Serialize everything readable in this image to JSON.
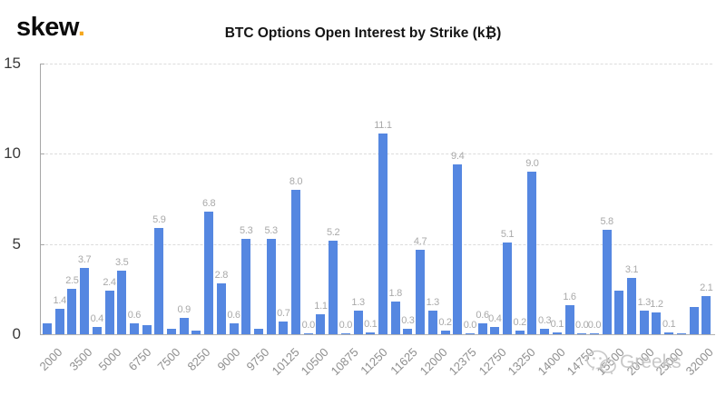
{
  "logo": {
    "text": "skew",
    "dot": "."
  },
  "header": {
    "title": "BTC Options Open Interest by Strike (k₿)"
  },
  "watermark": {
    "text": "Greeks",
    "icon": "wechat-icon"
  },
  "colors": {
    "bar": "#5587E1",
    "data_label": "#a9a9a9",
    "grid": "#dcdcdc",
    "axis": "#a6a6a6",
    "y_tick_text": "#3a3a3a",
    "x_tick_text": "#8f8f8f",
    "title_text": "#141414",
    "logo_dot": "#f5a81e",
    "watermark_text": "#c6c6c6"
  },
  "chart_data": {
    "type": "bar",
    "title": "BTC Options Open Interest by Strike (k₿)",
    "xlabel": "",
    "ylabel": "",
    "ylim": [
      0,
      15
    ],
    "yticks": [
      0,
      5,
      10,
      15
    ],
    "grid": "horizontal-dashed",
    "legend": "none",
    "x_tick_labels": [
      "2000",
      "3500",
      "5000",
      "6750",
      "7500",
      "8250",
      "9000",
      "9750",
      "10125",
      "10500",
      "10875",
      "11250",
      "11625",
      "12000",
      "12375",
      "12750",
      "13250",
      "14000",
      "14750",
      "15500",
      "20000",
      "25000",
      "32000"
    ],
    "bars": [
      {
        "value": 0.6,
        "label": ""
      },
      {
        "value": 1.4,
        "label": "1.4"
      },
      {
        "value": 2.5,
        "label": "2.5"
      },
      {
        "value": 3.7,
        "label": "3.7"
      },
      {
        "value": 0.4,
        "label": "0.4"
      },
      {
        "value": 2.4,
        "label": "2.4"
      },
      {
        "value": 3.5,
        "label": "3.5"
      },
      {
        "value": 0.6,
        "label": "0.6"
      },
      {
        "value": 0.5,
        "label": ""
      },
      {
        "value": 5.9,
        "label": "5.9"
      },
      {
        "value": 0.3,
        "label": ""
      },
      {
        "value": 0.9,
        "label": "0.9"
      },
      {
        "value": 0.2,
        "label": ""
      },
      {
        "value": 6.8,
        "label": "6.8"
      },
      {
        "value": 2.8,
        "label": "2.8"
      },
      {
        "value": 0.6,
        "label": "0.6"
      },
      {
        "value": 5.3,
        "label": "5.3"
      },
      {
        "value": 0.3,
        "label": ""
      },
      {
        "value": 5.3,
        "label": "5.3"
      },
      {
        "value": 0.7,
        "label": "0.7"
      },
      {
        "value": 8.0,
        "label": "8.0"
      },
      {
        "value": 0.0,
        "label": "0.0"
      },
      {
        "value": 1.1,
        "label": "1.1"
      },
      {
        "value": 5.2,
        "label": "5.2"
      },
      {
        "value": 0.0,
        "label": "0.0"
      },
      {
        "value": 1.3,
        "label": "1.3"
      },
      {
        "value": 0.1,
        "label": "0.1"
      },
      {
        "value": 11.1,
        "label": "11.1"
      },
      {
        "value": 1.8,
        "label": "1.8"
      },
      {
        "value": 0.3,
        "label": "0.3"
      },
      {
        "value": 4.7,
        "label": "4.7"
      },
      {
        "value": 1.3,
        "label": "1.3"
      },
      {
        "value": 0.2,
        "label": "0.2"
      },
      {
        "value": 9.4,
        "label": "9.4"
      },
      {
        "value": 0.0,
        "label": "0.0"
      },
      {
        "value": 0.6,
        "label": "0.6"
      },
      {
        "value": 0.4,
        "label": "0.4"
      },
      {
        "value": 5.1,
        "label": "5.1"
      },
      {
        "value": 0.2,
        "label": "0.2"
      },
      {
        "value": 9.0,
        "label": "9.0"
      },
      {
        "value": 0.3,
        "label": "0.3"
      },
      {
        "value": 0.1,
        "label": "0.1"
      },
      {
        "value": 1.6,
        "label": "1.6"
      },
      {
        "value": 0.0,
        "label": "0.0"
      },
      {
        "value": 0.0,
        "label": "0.0"
      },
      {
        "value": 5.8,
        "label": "5.8"
      },
      {
        "value": 2.4,
        "label": ""
      },
      {
        "value": 3.1,
        "label": "3.1"
      },
      {
        "value": 1.3,
        "label": "1.3"
      },
      {
        "value": 1.2,
        "label": "1.2"
      },
      {
        "value": 0.1,
        "label": "0.1"
      },
      {
        "value": 0.0,
        "label": ""
      },
      {
        "value": 1.5,
        "label": ""
      },
      {
        "value": 2.1,
        "label": "2.1"
      }
    ]
  }
}
